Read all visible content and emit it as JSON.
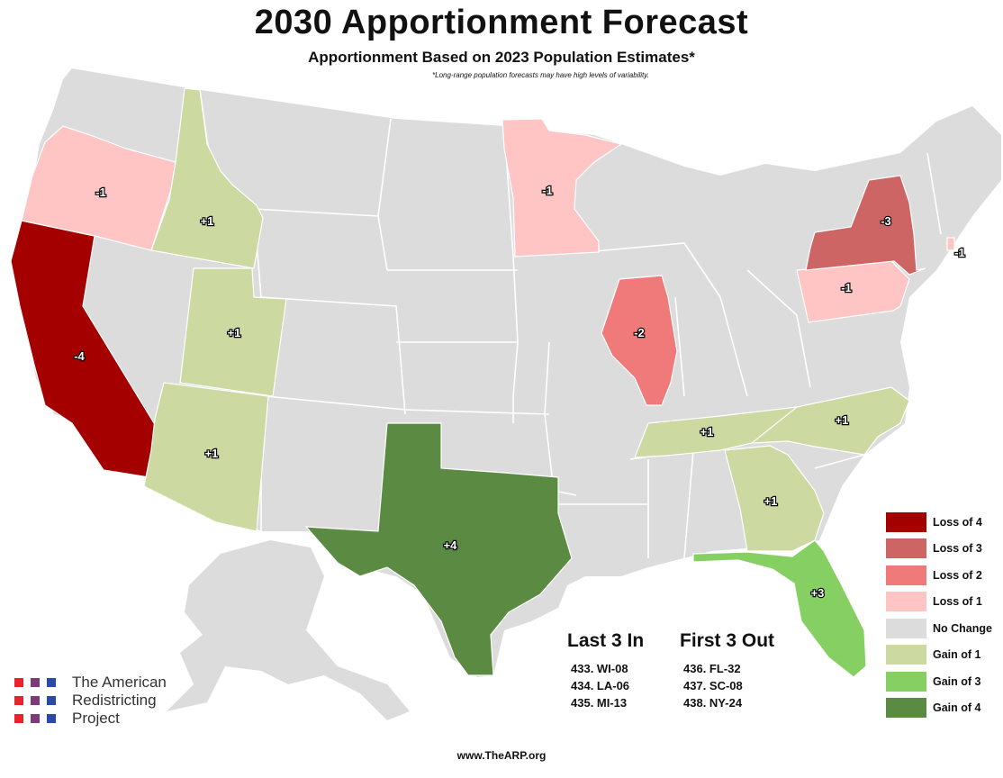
{
  "header": {
    "title": "2030 Apportionment Forecast",
    "subtitle": "Apportionment Based on 2023 Population Estimates*",
    "footnote": "*Long-range population forecasts may have high levels of variability."
  },
  "colors": {
    "no_change": "#dcdcdc",
    "loss_4": "#a50000",
    "loss_3": "#cd6565",
    "loss_2": "#f07a7a",
    "loss_1": "#ffc4c4",
    "gain_1": "#ccd9a0",
    "gain_3": "#86cf63",
    "gain_4": "#5b8a43"
  },
  "states": [
    {
      "name": "California",
      "change": "-4",
      "category": "loss_4"
    },
    {
      "name": "New York",
      "change": "-3",
      "category": "loss_3"
    },
    {
      "name": "Illinois",
      "change": "-2",
      "category": "loss_2"
    },
    {
      "name": "Oregon",
      "change": "-1",
      "category": "loss_1"
    },
    {
      "name": "Minnesota",
      "change": "-1",
      "category": "loss_1"
    },
    {
      "name": "Pennsylvania",
      "change": "-1",
      "category": "loss_1"
    },
    {
      "name": "Rhode Island",
      "change": "-1",
      "category": "loss_1"
    },
    {
      "name": "Texas",
      "change": "+4",
      "category": "gain_4"
    },
    {
      "name": "Florida",
      "change": "+3",
      "category": "gain_3"
    },
    {
      "name": "Idaho",
      "change": "+1",
      "category": "gain_1"
    },
    {
      "name": "Utah",
      "change": "+1",
      "category": "gain_1"
    },
    {
      "name": "Arizona",
      "change": "+1",
      "category": "gain_1"
    },
    {
      "name": "Tennessee",
      "change": "+1",
      "category": "gain_1"
    },
    {
      "name": "North Carolina",
      "change": "+1",
      "category": "gain_1"
    },
    {
      "name": "Georgia",
      "change": "+1",
      "category": "gain_1"
    }
  ],
  "legend": [
    {
      "label": "Loss of 4",
      "category": "loss_4"
    },
    {
      "label": "Loss of 3",
      "category": "loss_3"
    },
    {
      "label": "Loss of 2",
      "category": "loss_2"
    },
    {
      "label": "Loss of 1",
      "category": "loss_1"
    },
    {
      "label": "No Change",
      "category": "no_change"
    },
    {
      "label": "Gain of 1",
      "category": "gain_1"
    },
    {
      "label": "Gain of 3",
      "category": "gain_3"
    },
    {
      "label": "Gain of 4",
      "category": "gain_4"
    }
  ],
  "last_in": {
    "heading": "Last 3 In",
    "items": [
      "433. WI-08",
      "434. LA-06",
      "435. MI-13"
    ]
  },
  "first_out": {
    "heading": "First 3 Out",
    "items": [
      "436. FL-32",
      "437. SC-08",
      "438. NY-24"
    ]
  },
  "org": {
    "name_lines": [
      "The American",
      "Redistricting",
      "Project"
    ],
    "dot_colors": [
      "#e8232e",
      "#7f3a79",
      "#2a4aa5"
    ]
  },
  "website": "www.TheARP.org"
}
